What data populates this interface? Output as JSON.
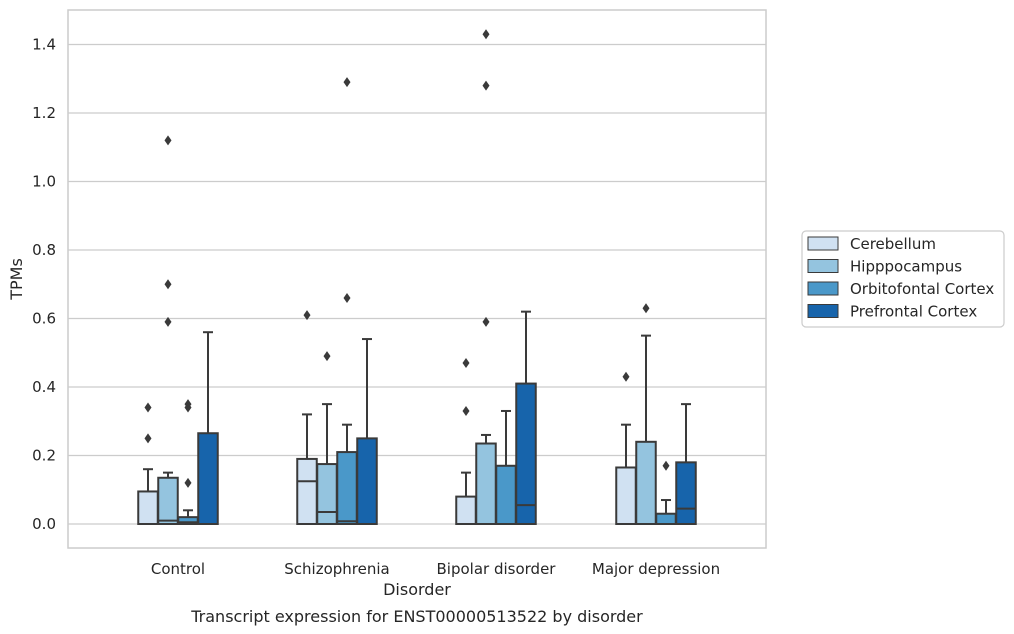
{
  "chart_data": {
    "type": "box",
    "caption": "Transcript expression for ENST00000513522 by disorder",
    "xlabel": "Disorder",
    "ylabel": "TPMs",
    "ylim": [
      -0.07,
      1.5
    ],
    "yticks": [
      "0.0",
      "0.2",
      "0.4",
      "0.6",
      "0.8",
      "1.0",
      "1.2",
      "1.4"
    ],
    "grid": "horizontal",
    "legend_position": "right",
    "categories": [
      "Control",
      "Schizophrenia",
      "Bipolar disorder",
      "Major depression"
    ],
    "series": [
      {
        "name": "Cerebellum",
        "color": "#d0e1f2"
      },
      {
        "name": "Hipppocampus",
        "color": "#94c4df"
      },
      {
        "name": "Orbitofontal Cortex",
        "color": "#4a98c9"
      },
      {
        "name": "Prefrontal Cortex",
        "color": "#1764ab"
      }
    ],
    "boxes": [
      [
        {
          "q1": 0.0,
          "median": 0.0,
          "q3": 0.095,
          "wlo": 0.0,
          "whi": 0.16,
          "outliers": [
            0.25,
            0.34
          ]
        },
        {
          "q1": 0.0,
          "median": 0.01,
          "q3": 0.135,
          "wlo": 0.0,
          "whi": 0.15,
          "outliers": [
            0.59,
            0.7,
            1.12
          ]
        },
        {
          "q1": 0.0,
          "median": 0.005,
          "q3": 0.02,
          "wlo": 0.0,
          "whi": 0.04,
          "outliers": [
            0.12,
            0.34,
            0.35
          ]
        },
        {
          "q1": 0.0,
          "median": 0.0,
          "q3": 0.265,
          "wlo": 0.0,
          "whi": 0.56,
          "outliers": []
        }
      ],
      [
        {
          "q1": 0.0,
          "median": 0.125,
          "q3": 0.19,
          "wlo": 0.0,
          "whi": 0.32,
          "outliers": [
            0.61
          ]
        },
        {
          "q1": 0.0,
          "median": 0.035,
          "q3": 0.175,
          "wlo": 0.0,
          "whi": 0.35,
          "outliers": [
            0.49
          ]
        },
        {
          "q1": 0.0,
          "median": 0.008,
          "q3": 0.21,
          "wlo": 0.0,
          "whi": 0.29,
          "outliers": [
            0.66,
            1.29
          ]
        },
        {
          "q1": 0.0,
          "median": 0.0,
          "q3": 0.25,
          "wlo": 0.0,
          "whi": 0.54,
          "outliers": []
        }
      ],
      [
        {
          "q1": 0.0,
          "median": 0.0,
          "q3": 0.08,
          "wlo": 0.0,
          "whi": 0.15,
          "outliers": [
            0.33,
            0.47
          ]
        },
        {
          "q1": 0.0,
          "median": 0.0,
          "q3": 0.235,
          "wlo": 0.0,
          "whi": 0.26,
          "outliers": [
            0.59,
            1.28,
            1.43
          ]
        },
        {
          "q1": 0.0,
          "median": 0.0,
          "q3": 0.17,
          "wlo": 0.0,
          "whi": 0.33,
          "outliers": []
        },
        {
          "q1": 0.0,
          "median": 0.055,
          "q3": 0.41,
          "wlo": 0.0,
          "whi": 0.62,
          "outliers": []
        }
      ],
      [
        {
          "q1": 0.0,
          "median": 0.0,
          "q3": 0.165,
          "wlo": 0.0,
          "whi": 0.29,
          "outliers": [
            0.43
          ]
        },
        {
          "q1": 0.0,
          "median": 0.0,
          "q3": 0.24,
          "wlo": 0.0,
          "whi": 0.55,
          "outliers": [
            0.63
          ]
        },
        {
          "q1": 0.0,
          "median": 0.0,
          "q3": 0.03,
          "wlo": 0.0,
          "whi": 0.07,
          "outliers": [
            0.17
          ]
        },
        {
          "q1": 0.0,
          "median": 0.045,
          "q3": 0.18,
          "wlo": 0.0,
          "whi": 0.35,
          "outliers": []
        }
      ]
    ]
  }
}
